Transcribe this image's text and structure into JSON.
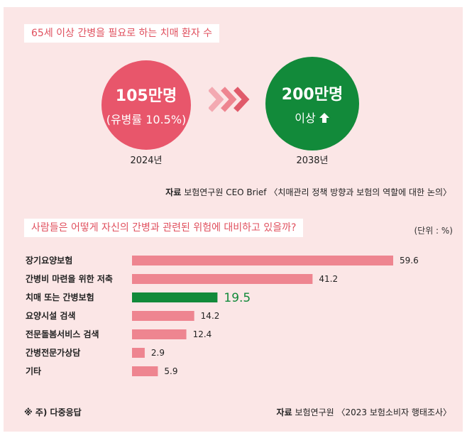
{
  "top": {
    "title": "65세 이상 간병을 필요로 하는 치매 환자 수",
    "left_circle": {
      "value": "105만명",
      "sub": "(유병률 10.5%)",
      "year": "2024년",
      "color": "#e8566b"
    },
    "right_circle": {
      "value": "200만명",
      "sub": "이상",
      "year": "2038년",
      "color": "#128a3a"
    },
    "source_label": "자료",
    "source_text": "보험연구원 CEO Brief 〈치매관리 정책 방향과 보험의 역할에 대한 논의〉"
  },
  "bottom": {
    "title": "사람들은 어떻게 자신의 간병과 관련된 위험에 대비하고 있을까?",
    "unit": "(단위 : %)",
    "footnote": "※ 주) 다중응답",
    "source_label": "자료",
    "source_text": "보험연구원 〈2023 보험소비자 행태조사〉"
  },
  "chart_data": {
    "type": "bar",
    "orientation": "horizontal",
    "categories": [
      "장기요양보험",
      "간병비 마련을 위한 저축",
      "치매 또는 간병보험",
      "요양시설 검색",
      "전문돌봄서비스 검색",
      "간병전문가상담",
      "기타"
    ],
    "values": [
      59.6,
      41.2,
      19.5,
      14.2,
      12.4,
      2.9,
      5.9
    ],
    "value_labels": [
      "59.6",
      "41.2",
      "19.5",
      "14.2",
      "12.4",
      "2.9",
      "5.9"
    ],
    "highlight_index": 2,
    "colors": {
      "bar": "#ee8590",
      "highlight": "#128a3a"
    },
    "xlim": [
      0,
      100
    ]
  }
}
